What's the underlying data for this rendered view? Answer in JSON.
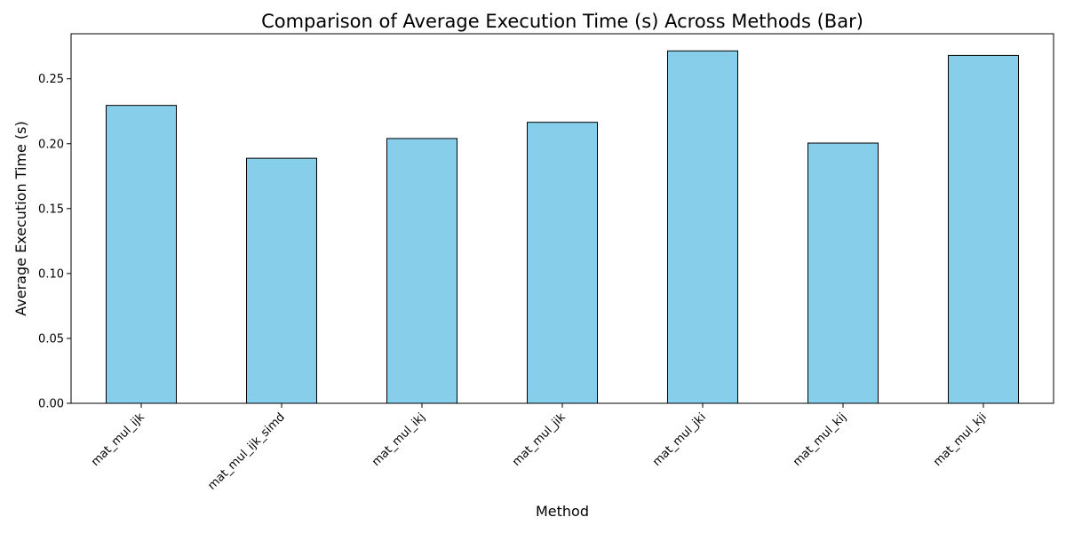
{
  "chart_data": {
    "type": "bar",
    "title": "Comparison of Average Execution Time (s) Across Methods (Bar)",
    "xlabel": "Method",
    "ylabel": "Average Execution Time (s)",
    "categories": [
      "mat_mul_ijk",
      "mat_mul_ijk_simd",
      "mat_mul_ikj",
      "mat_mul_jik",
      "mat_mul_jki",
      "mat_mul_kij",
      "mat_mul_kji"
    ],
    "values": [
      0.2295,
      0.1888,
      0.204,
      0.2165,
      0.2715,
      0.2005,
      0.268
    ],
    "ylim": [
      0,
      0.2847
    ],
    "yticks": [
      0.0,
      0.05,
      0.1,
      0.15,
      0.2,
      0.25
    ],
    "ytick_labels": [
      "0.00",
      "0.05",
      "0.10",
      "0.15",
      "0.20",
      "0.25"
    ],
    "bar_color": "#87CEEB",
    "bar_edge_color": "#000000",
    "grid": false,
    "legend": "none",
    "xtick_rotation_deg": 45
  }
}
